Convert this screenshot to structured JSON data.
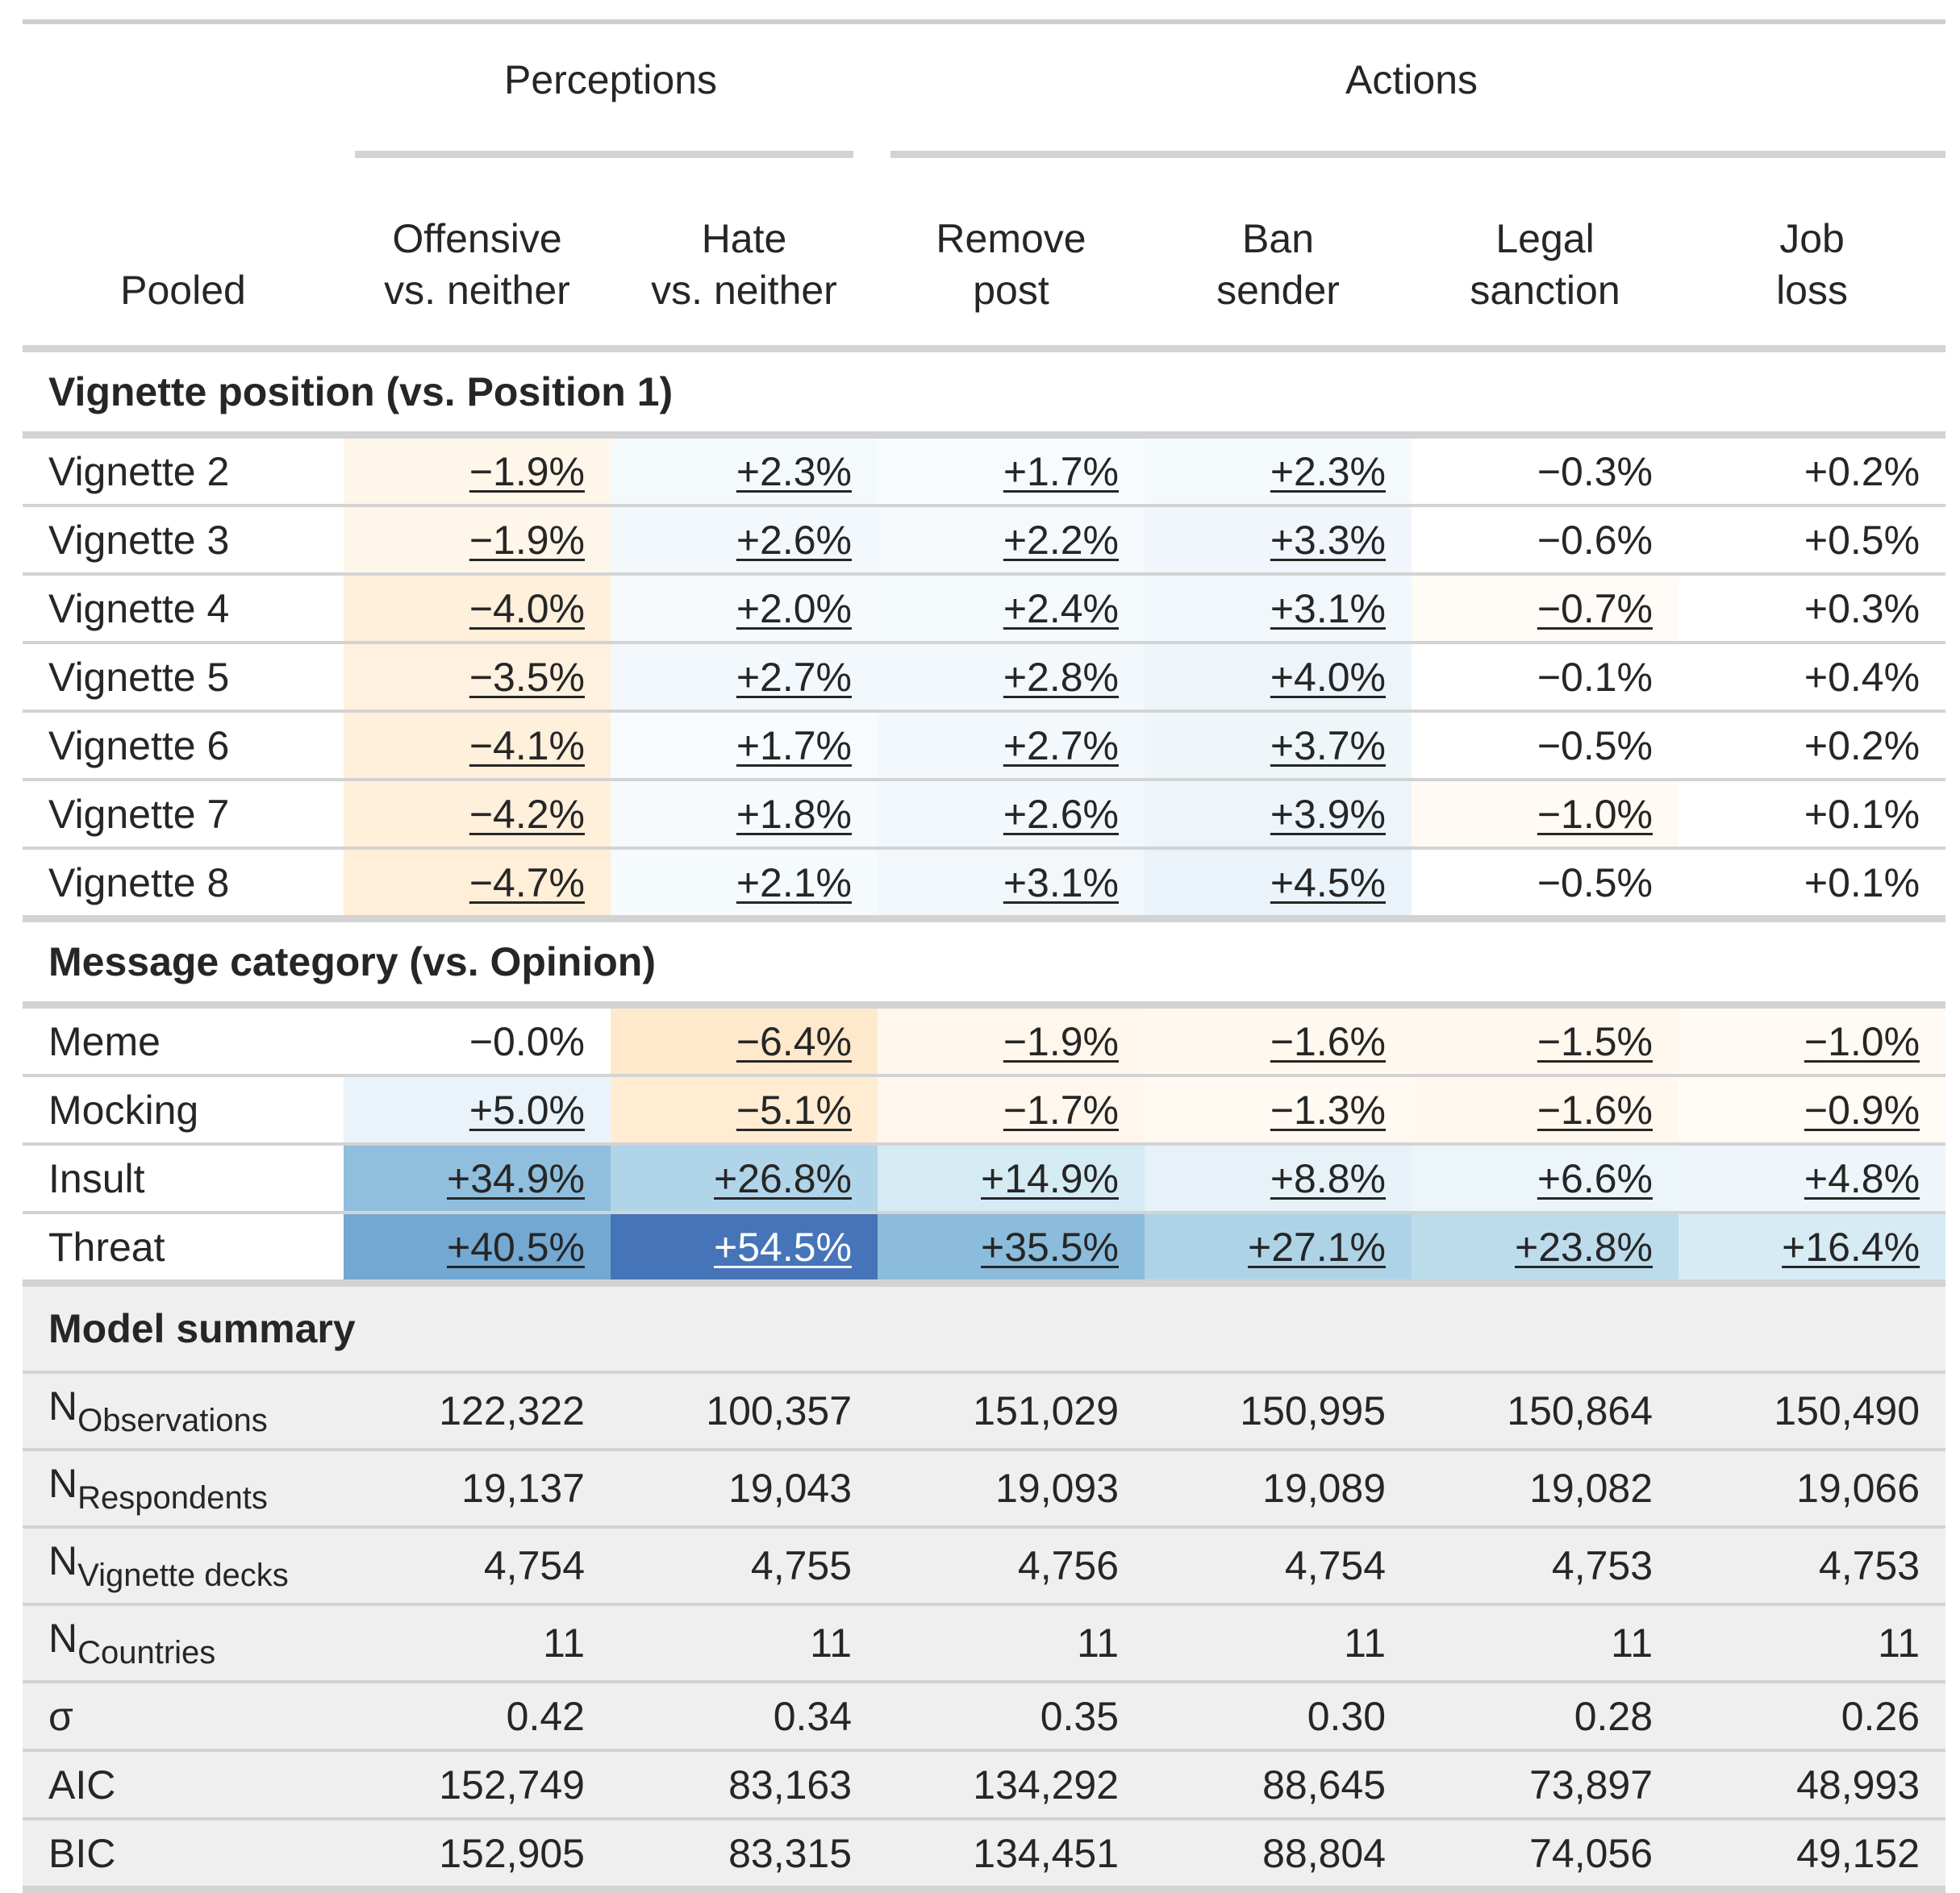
{
  "header": {
    "stub_label": "Pooled",
    "spanners": [
      {
        "label": "Perceptions",
        "colspan": 2
      },
      {
        "label": "Actions",
        "colspan": 4
      }
    ],
    "columns": [
      [
        "Offensive",
        "vs. neither"
      ],
      [
        "Hate",
        "vs. neither"
      ],
      [
        "Remove",
        "post"
      ],
      [
        "Ban",
        "sender"
      ],
      [
        "Legal",
        "sanction"
      ],
      [
        "Job",
        "loss"
      ]
    ]
  },
  "groups": [
    {
      "title": "Vignette position (vs. Position 1)",
      "rows": [
        {
          "label": "Vignette 2",
          "cells": [
            {
              "v": "−1.9%",
              "u": true,
              "bg": "#fff6ea"
            },
            {
              "v": "+2.3%",
              "u": true,
              "bg": "#f4f9fc"
            },
            {
              "v": "+1.7%",
              "u": true,
              "bg": "#f7fbfd"
            },
            {
              "v": "+2.3%",
              "u": true,
              "bg": "#f4f9fc"
            },
            {
              "v": "−0.3%",
              "u": false,
              "bg": "#ffffff"
            },
            {
              "v": "+0.2%",
              "u": false,
              "bg": "#ffffff"
            }
          ]
        },
        {
          "label": "Vignette 3",
          "cells": [
            {
              "v": "−1.9%",
              "u": true,
              "bg": "#fff6ea"
            },
            {
              "v": "+2.6%",
              "u": true,
              "bg": "#f3f8fc"
            },
            {
              "v": "+2.2%",
              "u": true,
              "bg": "#f5f9fc"
            },
            {
              "v": "+3.3%",
              "u": true,
              "bg": "#f0f6fb"
            },
            {
              "v": "−0.6%",
              "u": false,
              "bg": "#ffffff"
            },
            {
              "v": "+0.5%",
              "u": false,
              "bg": "#ffffff"
            }
          ]
        },
        {
          "label": "Vignette 4",
          "cells": [
            {
              "v": "−4.0%",
              "u": true,
              "bg": "#fff0dc"
            },
            {
              "v": "+2.0%",
              "u": true,
              "bg": "#f6fafd"
            },
            {
              "v": "+2.4%",
              "u": true,
              "bg": "#f4f9fc"
            },
            {
              "v": "+3.1%",
              "u": true,
              "bg": "#f1f7fb"
            },
            {
              "v": "−0.7%",
              "u": true,
              "bg": "#fffcf7"
            },
            {
              "v": "+0.3%",
              "u": false,
              "bg": "#ffffff"
            }
          ]
        },
        {
          "label": "Vignette 5",
          "cells": [
            {
              "v": "−3.5%",
              "u": true,
              "bg": "#fff1df"
            },
            {
              "v": "+2.7%",
              "u": true,
              "bg": "#f3f8fc"
            },
            {
              "v": "+2.8%",
              "u": true,
              "bg": "#f2f8fc"
            },
            {
              "v": "+4.0%",
              "u": true,
              "bg": "#edf5fa"
            },
            {
              "v": "−0.1%",
              "u": false,
              "bg": "#ffffff"
            },
            {
              "v": "+0.4%",
              "u": false,
              "bg": "#ffffff"
            }
          ]
        },
        {
          "label": "Vignette 6",
          "cells": [
            {
              "v": "−4.1%",
              "u": true,
              "bg": "#fff0dc"
            },
            {
              "v": "+1.7%",
              "u": true,
              "bg": "#f7fbfd"
            },
            {
              "v": "+2.7%",
              "u": true,
              "bg": "#f3f8fc"
            },
            {
              "v": "+3.7%",
              "u": true,
              "bg": "#eef6fa"
            },
            {
              "v": "−0.5%",
              "u": false,
              "bg": "#ffffff"
            },
            {
              "v": "+0.2%",
              "u": false,
              "bg": "#ffffff"
            }
          ]
        },
        {
          "label": "Vignette 7",
          "cells": [
            {
              "v": "−4.2%",
              "u": true,
              "bg": "#fff0db"
            },
            {
              "v": "+1.8%",
              "u": true,
              "bg": "#f6fafd"
            },
            {
              "v": "+2.6%",
              "u": true,
              "bg": "#f3f8fc"
            },
            {
              "v": "+3.9%",
              "u": true,
              "bg": "#eef5fa"
            },
            {
              "v": "−1.0%",
              "u": true,
              "bg": "#fffaf3"
            },
            {
              "v": "+0.1%",
              "u": false,
              "bg": "#ffffff"
            }
          ]
        },
        {
          "label": "Vignette 8",
          "cells": [
            {
              "v": "−4.7%",
              "u": true,
              "bg": "#ffeed8"
            },
            {
              "v": "+2.1%",
              "u": true,
              "bg": "#f5fafd"
            },
            {
              "v": "+3.1%",
              "u": true,
              "bg": "#f1f7fb"
            },
            {
              "v": "+4.5%",
              "u": true,
              "bg": "#ebf4fa"
            },
            {
              "v": "−0.5%",
              "u": false,
              "bg": "#ffffff"
            },
            {
              "v": "+0.1%",
              "u": false,
              "bg": "#ffffff"
            }
          ]
        }
      ]
    },
    {
      "title": "Message category (vs. Opinion)",
      "rows": [
        {
          "label": "Meme",
          "cells": [
            {
              "v": "−0.0%",
              "u": false,
              "bg": "#ffffff"
            },
            {
              "v": "−6.4%",
              "u": true,
              "bg": "#ffe9cc"
            },
            {
              "v": "−1.9%",
              "u": true,
              "bg": "#fff7ec"
            },
            {
              "v": "−1.6%",
              "u": true,
              "bg": "#fff8ee"
            },
            {
              "v": "−1.5%",
              "u": true,
              "bg": "#fff8ef"
            },
            {
              "v": "−1.0%",
              "u": true,
              "bg": "#fffaf3"
            }
          ]
        },
        {
          "label": "Mocking",
          "cells": [
            {
              "v": "+5.0%",
              "u": true,
              "bg": "#eaf3f9"
            },
            {
              "v": "−5.1%",
              "u": true,
              "bg": "#ffecd3"
            },
            {
              "v": "−1.7%",
              "u": true,
              "bg": "#fff7ed"
            },
            {
              "v": "−1.3%",
              "u": true,
              "bg": "#fff9f1"
            },
            {
              "v": "−1.6%",
              "u": true,
              "bg": "#fff8ee"
            },
            {
              "v": "−0.9%",
              "u": true,
              "bg": "#fffbf5"
            }
          ]
        },
        {
          "label": "Insult",
          "cells": [
            {
              "v": "+34.9%",
              "u": true,
              "bg": "#8fbfdd"
            },
            {
              "v": "+26.8%",
              "u": true,
              "bg": "#b0d4e8"
            },
            {
              "v": "+14.9%",
              "u": true,
              "bg": "#d5ebf3"
            },
            {
              "v": "+8.8%",
              "u": true,
              "bg": "#e6f2f8"
            },
            {
              "v": "+6.6%",
              "u": true,
              "bg": "#ebf5fa"
            },
            {
              "v": "+4.8%",
              "u": true,
              "bg": "#eef6fb"
            }
          ]
        },
        {
          "label": "Threat",
          "cells": [
            {
              "v": "+40.5%",
              "u": true,
              "bg": "#73a8d3"
            },
            {
              "v": "+54.5%",
              "u": true,
              "bg": "#4674b8",
              "fg": "#ffffff"
            },
            {
              "v": "+35.5%",
              "u": true,
              "bg": "#8bbcdc"
            },
            {
              "v": "+27.1%",
              "u": true,
              "bg": "#aed3e7"
            },
            {
              "v": "+23.8%",
              "u": true,
              "bg": "#bcdcec"
            },
            {
              "v": "+16.4%",
              "u": true,
              "bg": "#d6ebf3"
            }
          ]
        }
      ]
    }
  ],
  "summary": {
    "title": "Model summary",
    "rows": [
      {
        "label": "N",
        "sub": "Observations",
        "cells": [
          "122,322",
          "100,357",
          "151,029",
          "150,995",
          "150,864",
          "150,490"
        ]
      },
      {
        "label": "N",
        "sub": "Respondents",
        "cells": [
          "19,137",
          "19,043",
          "19,093",
          "19,089",
          "19,082",
          "19,066"
        ]
      },
      {
        "label": "N",
        "sub": "Vignette decks",
        "cells": [
          "4,754",
          "4,755",
          "4,756",
          "4,754",
          "4,753",
          "4,753"
        ]
      },
      {
        "label": "N",
        "sub": "Countries",
        "cells": [
          "11",
          "11",
          "11",
          "11",
          "11",
          "11"
        ]
      },
      {
        "label": "σ",
        "sub": "",
        "cells": [
          "0.42",
          "0.34",
          "0.35",
          "0.30",
          "0.28",
          "0.26"
        ]
      },
      {
        "label": "AIC",
        "sub": "",
        "cells": [
          "152,749",
          "83,163",
          "134,292",
          "88,645",
          "73,897",
          "48,993"
        ]
      },
      {
        "label": "BIC",
        "sub": "",
        "cells": [
          "152,905",
          "83,315",
          "134,451",
          "88,804",
          "74,056",
          "49,152"
        ]
      }
    ]
  }
}
